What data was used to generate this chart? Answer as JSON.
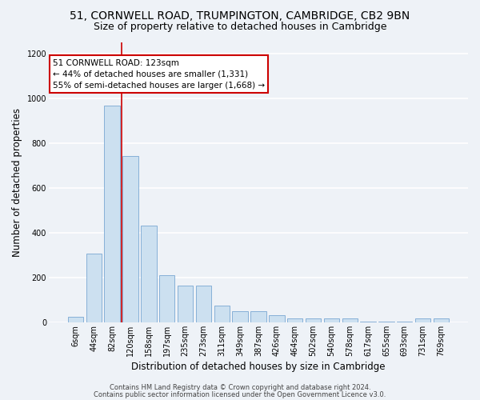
{
  "title_line1": "51, CORNWELL ROAD, TRUMPINGTON, CAMBRIDGE, CB2 9BN",
  "title_line2": "Size of property relative to detached houses in Cambridge",
  "xlabel": "Distribution of detached houses by size in Cambridge",
  "ylabel": "Number of detached properties",
  "bar_color": "#cce0f0",
  "bar_edge_color": "#6699cc",
  "categories": [
    "6sqm",
    "44sqm",
    "82sqm",
    "120sqm",
    "158sqm",
    "197sqm",
    "235sqm",
    "273sqm",
    "311sqm",
    "349sqm",
    "387sqm",
    "426sqm",
    "464sqm",
    "502sqm",
    "540sqm",
    "578sqm",
    "617sqm",
    "655sqm",
    "693sqm",
    "731sqm",
    "769sqm"
  ],
  "values": [
    25,
    305,
    965,
    740,
    430,
    210,
    165,
    165,
    75,
    48,
    48,
    30,
    18,
    18,
    18,
    18,
    5,
    5,
    5,
    18,
    18
  ],
  "ylim": [
    0,
    1250
  ],
  "yticks": [
    0,
    200,
    400,
    600,
    800,
    1000,
    1200
  ],
  "annotation_text": "51 CORNWELL ROAD: 123sqm\n← 44% of detached houses are smaller (1,331)\n55% of semi-detached houses are larger (1,668) →",
  "annotation_box_color": "#ffffff",
  "annotation_box_edge": "#cc0000",
  "vline_color": "#cc0000",
  "vline_x": 2.5,
  "footer_line1": "Contains HM Land Registry data © Crown copyright and database right 2024.",
  "footer_line2": "Contains public sector information licensed under the Open Government Licence v3.0.",
  "plot_bg_color": "#eef2f7",
  "fig_bg_color": "#eef2f7",
  "grid_color": "#ffffff",
  "title_fontsize": 10,
  "subtitle_fontsize": 9,
  "tick_fontsize": 7,
  "ylabel_fontsize": 8.5,
  "xlabel_fontsize": 8.5,
  "footer_fontsize": 6,
  "annotation_fontsize": 7.5
}
